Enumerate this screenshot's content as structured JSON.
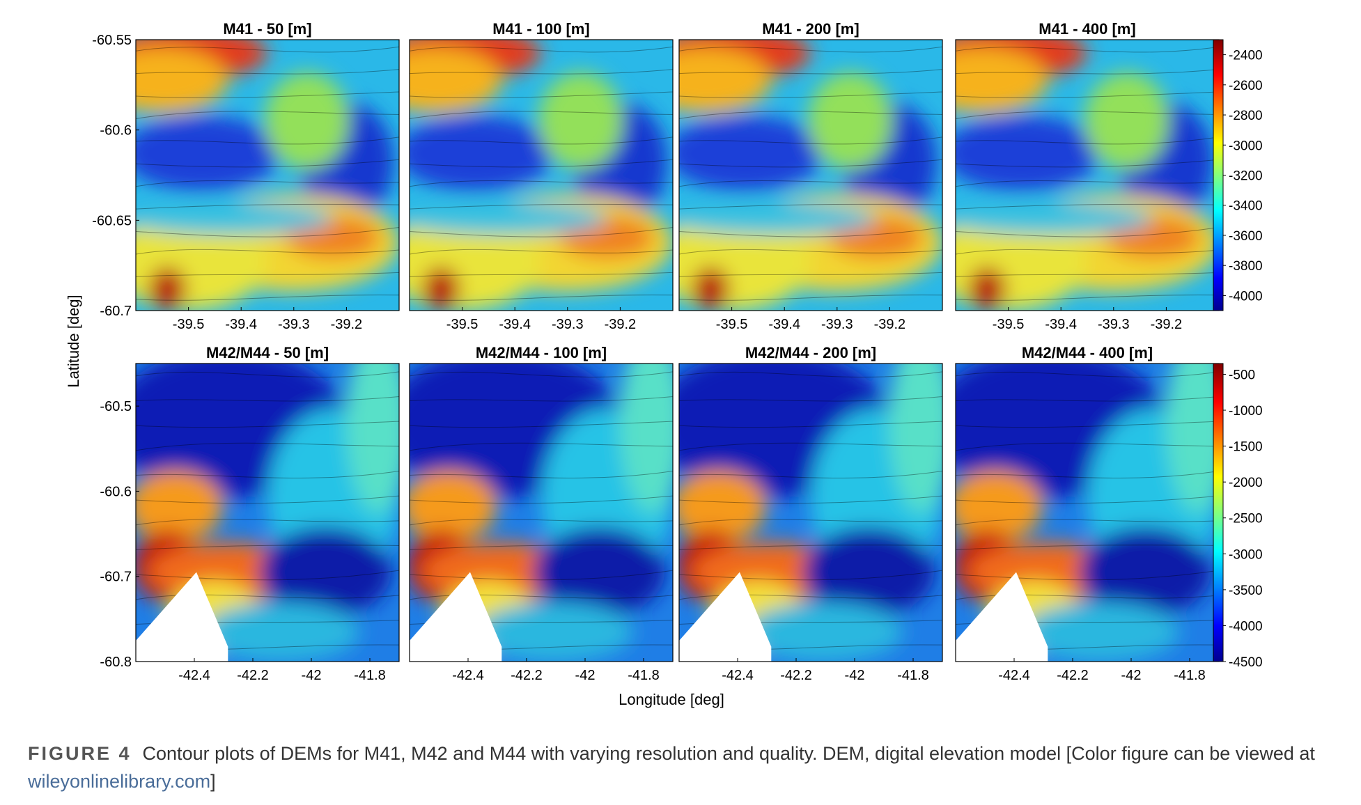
{
  "figure": {
    "ylabel": "Latitude [deg]",
    "xlabel": "Longitude [deg]"
  },
  "caption": {
    "label": "FIGURE 4",
    "text": "Contour plots of DEMs for M41, M42 and M44 with varying resolution and quality. DEM, digital elevation model [Color figure can be viewed at ",
    "link": "wileyonlinelibrary.com",
    "end": "]"
  },
  "chart_data": [
    {
      "type": "heatmap",
      "rows": [
        {
          "panels": [
            "M41 - 50 [m]",
            "M41 - 100 [m]",
            "M41 - 200 [m]",
            "M41 - 400 [m]"
          ],
          "xticks": [
            -39.5,
            -39.4,
            -39.3,
            -39.2
          ],
          "xlim": [
            -39.6,
            -39.1
          ],
          "yticks": [
            -60.55,
            -60.6,
            -60.65,
            -60.7
          ],
          "ylim": [
            -60.7,
            -60.55
          ],
          "colorbar_ticks": [
            -2400,
            -2600,
            -2800,
            -3000,
            -3200,
            -3400,
            -3600,
            -3800,
            -4000
          ],
          "clim": [
            -4100,
            -2300
          ]
        },
        {
          "panels": [
            "M42/M44 - 50 [m]",
            "M42/M44 - 100 [m]",
            "M42/M44 - 200 [m]",
            "M42/M44 - 400 [m]"
          ],
          "xticks": [
            -42.4,
            -42.2,
            -42,
            -41.8
          ],
          "xlim": [
            -42.6,
            -41.7
          ],
          "yticks": [
            -60.5,
            -60.6,
            -60.7,
            -60.8
          ],
          "ylim": [
            -60.8,
            -60.45
          ],
          "colorbar_ticks": [
            -500,
            -1000,
            -1500,
            -2000,
            -2500,
            -3000,
            -3500,
            -4000,
            -4500
          ],
          "clim": [
            -4500,
            -350
          ]
        }
      ],
      "colormap": "jet"
    }
  ]
}
